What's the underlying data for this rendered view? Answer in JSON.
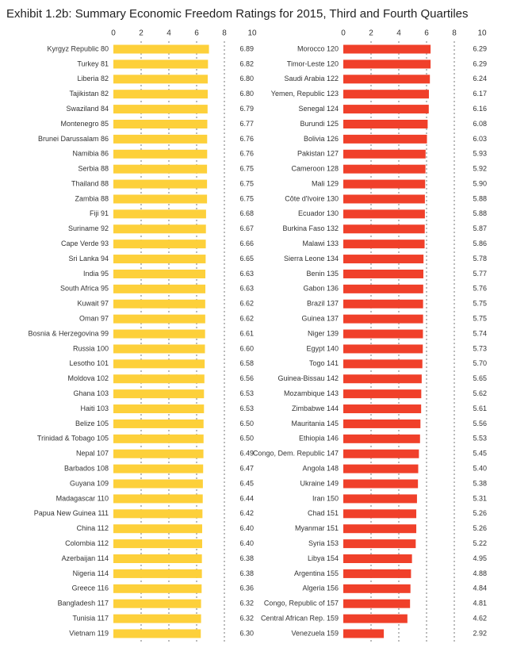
{
  "title": "Exhibit 1.2b: Summary Economic Freedom Ratings for 2015, Third and Fourth Quartiles",
  "chart_data": [
    {
      "type": "hbar",
      "color": "#fdd03a",
      "xlim": [
        0,
        10
      ],
      "xticks": [
        0,
        2,
        4,
        6,
        8,
        10
      ],
      "grid": true,
      "categories": [
        "Kyrgyz Republic 80",
        "Turkey 81",
        "Liberia 82",
        "Tajikistan 82",
        "Swaziland 84",
        "Montenegro 85",
        "Brunei Darussalam 86",
        "Namibia 86",
        "Serbia 88",
        "Thailand 88",
        "Zambia 88",
        "Fiji 91",
        "Suriname 92",
        "Cape Verde 93",
        "Sri Lanka 94",
        "India 95",
        "South Africa 95",
        "Kuwait 97",
        "Oman 97",
        "Bosnia & Herzegovina 99",
        "Russia 100",
        "Lesotho 101",
        "Moldova 102",
        "Ghana 103",
        "Haiti 103",
        "Belize 105",
        "Trinidad & Tobago 105",
        "Nepal 107",
        "Barbados 108",
        "Guyana 109",
        "Madagascar 110",
        "Papua New Guinea 111",
        "China 112",
        "Colombia 112",
        "Azerbaijan 114",
        "Nigeria 114",
        "Greece 116",
        "Bangladesh 117",
        "Tunisia 117",
        "Vietnam 119"
      ],
      "values": [
        6.89,
        6.82,
        6.8,
        6.8,
        6.79,
        6.77,
        6.76,
        6.76,
        6.75,
        6.75,
        6.75,
        6.68,
        6.67,
        6.66,
        6.65,
        6.63,
        6.63,
        6.62,
        6.62,
        6.61,
        6.6,
        6.58,
        6.56,
        6.53,
        6.53,
        6.5,
        6.5,
        6.49,
        6.47,
        6.45,
        6.44,
        6.42,
        6.4,
        6.4,
        6.38,
        6.38,
        6.36,
        6.32,
        6.32,
        6.3
      ],
      "value_labels": [
        "6.89",
        "6.82",
        "6.80",
        "6.80",
        "6.79",
        "6.77",
        "6.76",
        "6.76",
        "6.75",
        "6.75",
        "6.75",
        "6.68",
        "6.67",
        "6.66",
        "6.65",
        "6.63",
        "6.63",
        "6.62",
        "6.62",
        "6.61",
        "6.60",
        "6.58",
        "6.56",
        "6.53",
        "6.53",
        "6.50",
        "6.50",
        "6.49",
        "6.47",
        "6.45",
        "6.44",
        "6.42",
        "6.40",
        "6.40",
        "6.38",
        "6.38",
        "6.36",
        "6.32",
        "6.32",
        "6.30"
      ]
    },
    {
      "type": "hbar",
      "color": "#f0402a",
      "xlim": [
        0,
        10
      ],
      "xticks": [
        0,
        2,
        4,
        6,
        8,
        10
      ],
      "grid": true,
      "categories": [
        "Morocco 120",
        "Timor-Leste 120",
        "Saudi Arabia 122",
        "Yemen, Republic 123",
        "Senegal 124",
        "Burundi 125",
        "Bolivia 126",
        "Pakistan 127",
        "Cameroon 128",
        "Mali 129",
        "Côte d'Ivoire 130",
        "Ecuador 130",
        "Burkina Faso 132",
        "Malawi 133",
        "Sierra Leone 134",
        "Benin 135",
        "Gabon 136",
        "Brazil 137",
        "Guinea 137",
        "Niger 139",
        "Egypt 140",
        "Togo 141",
        "Guinea-Bissau 142",
        "Mozambique 143",
        "Zimbabwe 144",
        "Mauritania 145",
        "Ethiopia 146",
        "Congo, Dem. Republic 147",
        "Angola 148",
        "Ukraine 149",
        "Iran 150",
        "Chad 151",
        "Myanmar 151",
        "Syria 153",
        "Libya 154",
        "Argentina 155",
        "Algeria 156",
        "Congo, Republic of 157",
        "Central African Rep. 159",
        "Venezuela 159"
      ],
      "values": [
        6.29,
        6.29,
        6.24,
        6.17,
        6.16,
        6.08,
        6.03,
        5.93,
        5.92,
        5.9,
        5.88,
        5.88,
        5.87,
        5.86,
        5.78,
        5.77,
        5.76,
        5.75,
        5.75,
        5.74,
        5.73,
        5.7,
        5.65,
        5.62,
        5.61,
        5.56,
        5.53,
        5.45,
        5.4,
        5.38,
        5.31,
        5.26,
        5.26,
        5.22,
        4.95,
        4.88,
        4.84,
        4.81,
        4.62,
        2.92
      ],
      "value_labels": [
        "6.29",
        "6.29",
        "6.24",
        "6.17",
        "6.16",
        "6.08",
        "6.03",
        "5.93",
        "5.92",
        "5.90",
        "5.88",
        "5.88",
        "5.87",
        "5.86",
        "5.78",
        "5.77",
        "5.76",
        "5.75",
        "5.75",
        "5.74",
        "5.73",
        "5.70",
        "5.65",
        "5.62",
        "5.61",
        "5.56",
        "5.53",
        "5.45",
        "5.40",
        "5.38",
        "5.31",
        "5.26",
        "5.26",
        "5.22",
        "4.95",
        "4.88",
        "4.84",
        "4.81",
        "4.62",
        "2.92"
      ]
    }
  ]
}
